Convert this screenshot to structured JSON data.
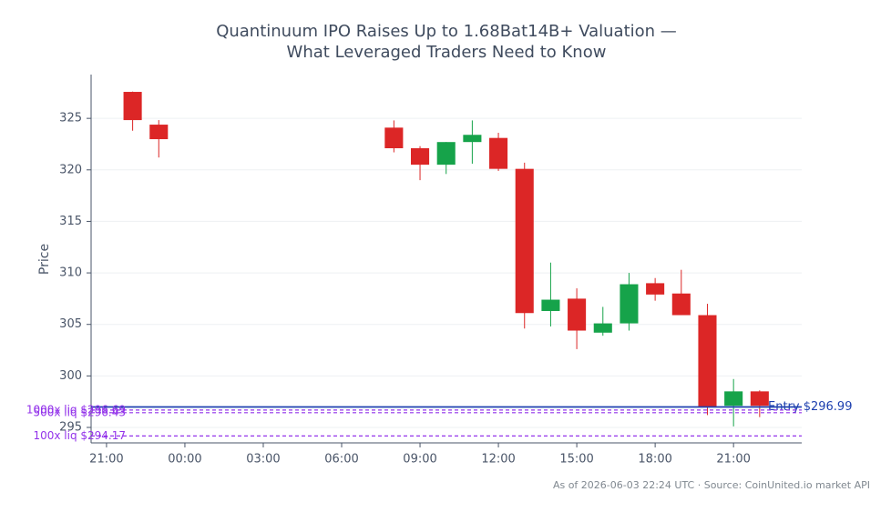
{
  "chart_data": {
    "type": "candlestick",
    "title": [
      "Quantinuum IPO Raises Up to 1.68Bat14B+ Valuation —",
      "What Leveraged Traders Need to Know"
    ],
    "ylabel": "Price",
    "footnote": "As of 2026-06-03 22:24 UTC · Source: CoinUnited.io market API",
    "up_color": "#16a34a",
    "down_color": "#dc2626",
    "x": [
      22,
      23,
      32,
      33,
      34,
      35,
      36,
      37,
      38,
      39,
      40,
      41,
      42,
      43,
      44,
      45,
      46
    ],
    "open": [
      327.57,
      324.39,
      324.1,
      322.1,
      320.5,
      322.7,
      323.1,
      320.1,
      306.3,
      307.5,
      304.2,
      305.1,
      309.0,
      308.0,
      305.9,
      297.1,
      298.5
    ],
    "high": [
      327.6,
      324.83,
      324.8,
      322.3,
      322.7,
      324.8,
      323.6,
      320.7,
      311.0,
      308.5,
      306.7,
      310.0,
      309.5,
      310.3,
      307.0,
      299.7,
      298.6
    ],
    "low": [
      323.8,
      321.2,
      321.7,
      319.0,
      319.6,
      320.6,
      319.9,
      304.6,
      304.8,
      302.6,
      303.9,
      304.4,
      307.3,
      305.9,
      296.2,
      295.1,
      296.0
    ],
    "close": [
      324.83,
      322.98,
      322.1,
      320.5,
      322.7,
      323.4,
      320.1,
      306.1,
      307.4,
      304.4,
      305.1,
      308.9,
      307.9,
      305.9,
      297.0,
      298.5,
      297.1
    ],
    "xlim": [
      20.41,
      47.61
    ],
    "xticks": [
      {
        "value": 21,
        "label": "21:00"
      },
      {
        "value": 24,
        "label": "00:00"
      },
      {
        "value": 27,
        "label": "03:00"
      },
      {
        "value": 30,
        "label": "06:00"
      },
      {
        "value": 33,
        "label": "09:00"
      },
      {
        "value": 36,
        "label": "12:00"
      },
      {
        "value": 39,
        "label": "15:00"
      },
      {
        "value": 42,
        "label": "18:00"
      },
      {
        "value": 45,
        "label": "21:00"
      }
    ],
    "ylim": [
      293.5,
      329.25
    ],
    "yticks": [
      295,
      300,
      305,
      310,
      315,
      320,
      325
    ],
    "grid": true,
    "hlines": [
      {
        "label": "Entry $296.99",
        "value": 296.99,
        "color": "#1e40af",
        "dashed": false,
        "side": "right"
      },
      {
        "label": "1000x liq $296.69",
        "value": 296.69,
        "color": "#9333ea",
        "dashed": true,
        "side": "left"
      },
      {
        "label": "500x liq $296.43",
        "value": 296.43,
        "color": "#9333ea",
        "dashed": true,
        "side": "left"
      },
      {
        "label": "100x liq $294.17",
        "value": 294.17,
        "color": "#9333ea",
        "dashed": true,
        "side": "left"
      }
    ]
  }
}
